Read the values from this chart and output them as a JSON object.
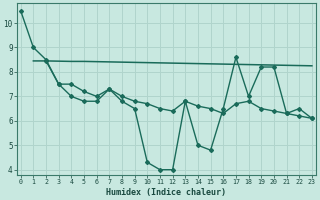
{
  "title": "",
  "xlabel": "Humidex (Indice chaleur)",
  "bg_color": "#c8e8e0",
  "line_color": "#1a6b5a",
  "grid_color": "#b0d4cc",
  "x_values": [
    0,
    1,
    2,
    3,
    4,
    5,
    6,
    7,
    8,
    9,
    10,
    11,
    12,
    13,
    14,
    15,
    16,
    17,
    18,
    19,
    20,
    21,
    22,
    23
  ],
  "y_zigzag": [
    10.5,
    9.0,
    8.5,
    7.5,
    7.0,
    6.8,
    6.8,
    7.3,
    6.8,
    6.5,
    4.3,
    4.0,
    4.0,
    6.8,
    5.0,
    4.8,
    6.5,
    8.6,
    7.0,
    8.2,
    8.2,
    6.3,
    6.5,
    6.1
  ],
  "y_flat_x": [
    1,
    2,
    3,
    4,
    5,
    6,
    7,
    8,
    9,
    10,
    11,
    12,
    13,
    14,
    15,
    16,
    17,
    18,
    19,
    20,
    21,
    22,
    23
  ],
  "y_flat": [
    8.45,
    8.45,
    8.44,
    8.43,
    8.43,
    8.42,
    8.41,
    8.4,
    8.39,
    8.38,
    8.37,
    8.36,
    8.35,
    8.34,
    8.33,
    8.32,
    8.31,
    8.3,
    8.29,
    8.28,
    8.27,
    8.26,
    8.25
  ],
  "y_diag_x": [
    2,
    3,
    4,
    5,
    6,
    7,
    8,
    9,
    10,
    11,
    12,
    13,
    14,
    15,
    16,
    17,
    18,
    19,
    20,
    21,
    22,
    23
  ],
  "y_diag": [
    8.45,
    7.5,
    7.5,
    7.2,
    7.0,
    7.3,
    7.0,
    6.8,
    6.7,
    6.5,
    6.4,
    6.8,
    6.6,
    6.5,
    6.3,
    6.7,
    6.8,
    6.5,
    6.4,
    6.3,
    6.2,
    6.1
  ],
  "ylim": [
    3.8,
    10.8
  ],
  "xlim": [
    -0.3,
    23.3
  ],
  "yticks": [
    4,
    5,
    6,
    7,
    8,
    9,
    10
  ],
  "xticks": [
    0,
    1,
    2,
    3,
    4,
    5,
    6,
    7,
    8,
    9,
    10,
    11,
    12,
    13,
    14,
    15,
    16,
    17,
    18,
    19,
    20,
    21,
    22,
    23
  ]
}
